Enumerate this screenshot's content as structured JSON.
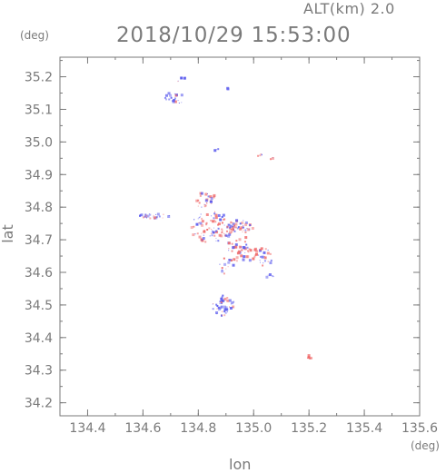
{
  "header": {
    "altitude_label": "ALT(km) 2.0",
    "timestamp": "2018/10/29 15:53:00"
  },
  "chart_data": {
    "type": "scatter",
    "title": "2018/10/29 15:53:00",
    "subtitle": "ALT(km) 2.0",
    "xlabel": "lon",
    "ylabel": "lat",
    "x_unit": "(deg)",
    "y_unit": "(deg)",
    "xlim": [
      134.3,
      135.6
    ],
    "ylim": [
      34.16,
      35.26
    ],
    "x_ticks": [
      134.4,
      134.6,
      134.8,
      135.0,
      135.2,
      135.4,
      135.6
    ],
    "x_tick_labels": [
      "134.4",
      "134.6",
      "134.8",
      "135.0",
      "135.2",
      "135.4",
      "135.6"
    ],
    "y_ticks": [
      34.2,
      34.3,
      34.4,
      34.5,
      34.6,
      34.7,
      34.8,
      34.9,
      35.0,
      35.1,
      35.2
    ],
    "y_tick_labels": [
      "34.2",
      "34.3",
      "34.4",
      "34.5",
      "34.6",
      "34.7",
      "34.8",
      "34.9",
      "35.0",
      "35.1",
      "35.2"
    ],
    "grid": false,
    "colors": {
      "positive": "#f06a6a",
      "negative": "#5a5aee",
      "axis": "#7a7a7a"
    },
    "clusters": [
      {
        "lon": 134.72,
        "lat": 35.135,
        "dlon": 0.04,
        "dlat": 0.02,
        "n": 20,
        "mix": 0.2
      },
      {
        "lon": 134.75,
        "lat": 35.19,
        "dlon": 0.03,
        "dlat": 0.008,
        "n": 5,
        "mix": 0.3
      },
      {
        "lon": 134.91,
        "lat": 35.165,
        "dlon": 0.005,
        "dlat": 0.003,
        "n": 2,
        "mix": 0.0
      },
      {
        "lon": 134.87,
        "lat": 34.975,
        "dlon": 0.01,
        "dlat": 0.004,
        "n": 3,
        "mix": 0.3
      },
      {
        "lon": 135.02,
        "lat": 34.962,
        "dlon": 0.02,
        "dlat": 0.006,
        "n": 6,
        "mix": 0.5
      },
      {
        "lon": 135.07,
        "lat": 34.948,
        "dlon": 0.01,
        "dlat": 0.004,
        "n": 3,
        "mix": 0.8
      },
      {
        "lon": 134.82,
        "lat": 34.82,
        "dlon": 0.03,
        "dlat": 0.025,
        "n": 26,
        "mix": 0.7
      },
      {
        "lon": 134.86,
        "lat": 34.835,
        "dlon": 0.01,
        "dlat": 0.006,
        "n": 4,
        "mix": 0.8
      },
      {
        "lon": 134.64,
        "lat": 34.772,
        "dlon": 0.06,
        "dlat": 0.008,
        "n": 26,
        "mix": 0.25
      },
      {
        "lon": 134.85,
        "lat": 34.74,
        "dlon": 0.08,
        "dlat": 0.05,
        "n": 95,
        "mix": 0.5
      },
      {
        "lon": 134.95,
        "lat": 34.74,
        "dlon": 0.05,
        "dlat": 0.02,
        "n": 42,
        "mix": 0.6
      },
      {
        "lon": 134.96,
        "lat": 34.67,
        "dlon": 0.06,
        "dlat": 0.04,
        "n": 52,
        "mix": 0.55
      },
      {
        "lon": 135.04,
        "lat": 34.645,
        "dlon": 0.03,
        "dlat": 0.03,
        "n": 22,
        "mix": 0.5
      },
      {
        "lon": 134.9,
        "lat": 34.62,
        "dlon": 0.03,
        "dlat": 0.025,
        "n": 16,
        "mix": 0.4
      },
      {
        "lon": 135.06,
        "lat": 34.59,
        "dlon": 0.015,
        "dlat": 0.008,
        "n": 5,
        "mix": 0.3
      },
      {
        "lon": 134.89,
        "lat": 34.5,
        "dlon": 0.04,
        "dlat": 0.035,
        "n": 48,
        "mix": 0.3
      },
      {
        "lon": 135.205,
        "lat": 34.34,
        "dlon": 0.012,
        "dlat": 0.006,
        "n": 14,
        "mix": 1.0
      }
    ]
  }
}
